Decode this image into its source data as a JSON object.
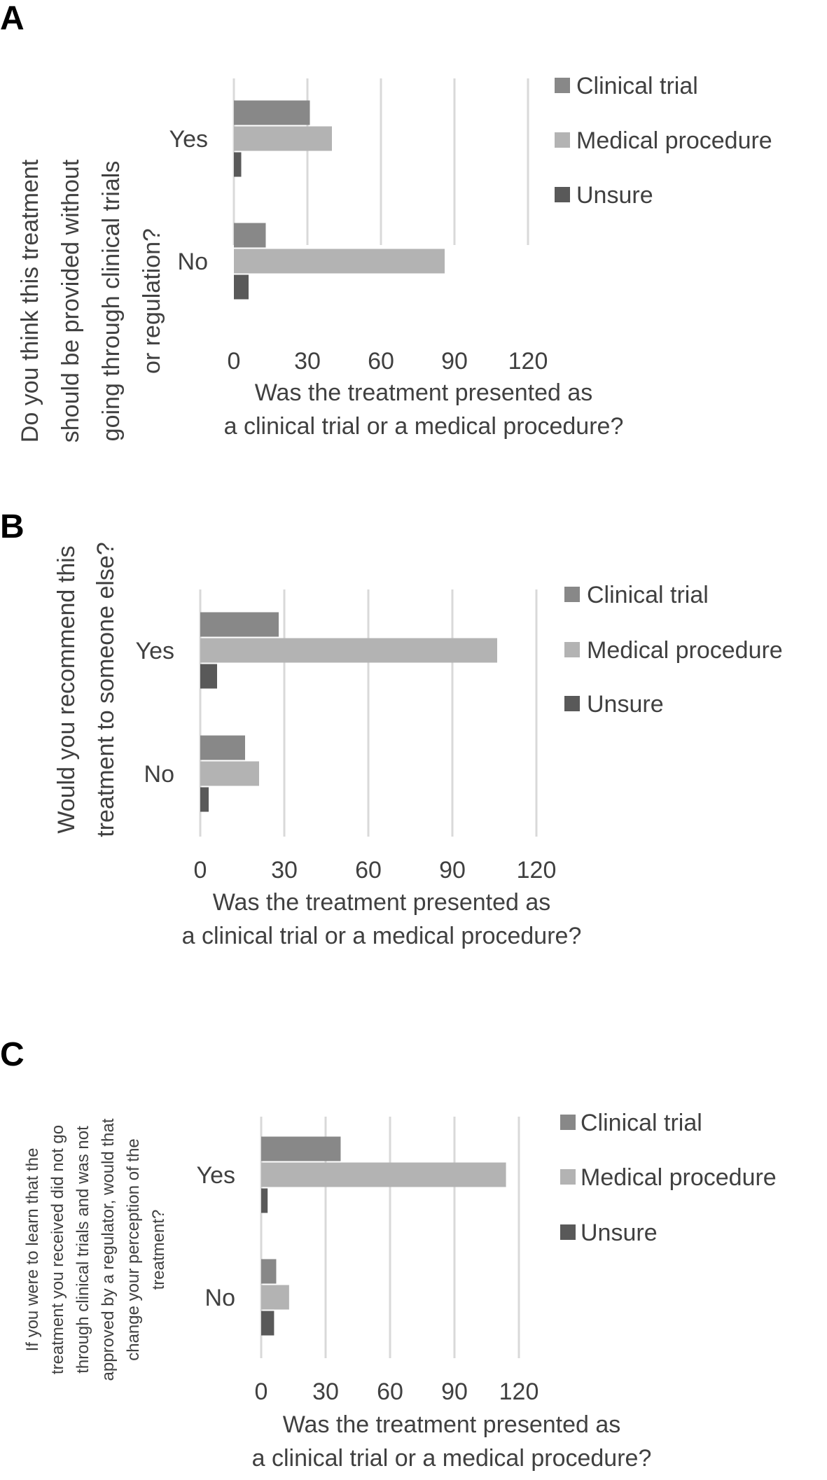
{
  "colors": {
    "Clinical trial": "#888888",
    "Medical procedure": "#b3b3b3",
    "Unsure": "#595959",
    "grid": "#d9d9d9",
    "text": "#404040"
  },
  "chart_data": [
    {
      "type": "bar",
      "orientation": "horizontal",
      "panel": "A",
      "categories": [
        "Yes",
        "No"
      ],
      "series": [
        {
          "name": "Clinical trial",
          "values": [
            31,
            13
          ]
        },
        {
          "name": "Medical procedure",
          "values": [
            40,
            86
          ]
        },
        {
          "name": "Unsure",
          "values": [
            3,
            6
          ]
        }
      ],
      "xticks": [
        "0",
        "30",
        "60",
        "90",
        "120"
      ],
      "xlim": [
        0,
        120
      ],
      "xlabel": [
        "Was the treatment presented as",
        "a clinical trial or a medical procedure?"
      ],
      "ylabel": [
        "Do you think this treatment",
        "should be provided without",
        "going through clinical trials",
        "or regulation?"
      ],
      "legend": [
        "Clinical trial",
        "Medical procedure",
        "Unsure"
      ],
      "legend_position": "right",
      "grid": true
    },
    {
      "type": "bar",
      "orientation": "horizontal",
      "panel": "B",
      "categories": [
        "Yes",
        "No"
      ],
      "series": [
        {
          "name": "Clinical trial",
          "values": [
            28,
            16
          ]
        },
        {
          "name": "Medical procedure",
          "values": [
            106,
            21
          ]
        },
        {
          "name": "Unsure",
          "values": [
            6,
            3
          ]
        }
      ],
      "xticks": [
        "0",
        "30",
        "60",
        "90",
        "120"
      ],
      "xlim": [
        0,
        120
      ],
      "xlabel": [
        "Was the treatment presented as",
        "a clinical trial or a medical procedure?"
      ],
      "ylabel": [
        "Would you recommend this",
        "treatment to someone else?"
      ],
      "legend": [
        "Clinical trial",
        "Medical procedure",
        "Unsure"
      ],
      "legend_position": "right",
      "grid": true
    },
    {
      "type": "bar",
      "orientation": "horizontal",
      "panel": "C",
      "categories": [
        "Yes",
        "No"
      ],
      "series": [
        {
          "name": "Clinical trial",
          "values": [
            37,
            7
          ]
        },
        {
          "name": "Medical procedure",
          "values": [
            114,
            13
          ]
        },
        {
          "name": "Unsure",
          "values": [
            3,
            6
          ]
        }
      ],
      "xticks": [
        "0",
        "30",
        "60",
        "90",
        "120"
      ],
      "xlim": [
        0,
        120
      ],
      "xlabel": [
        "Was the treatment presented as",
        "a clinical trial or a medical procedure?"
      ],
      "ylabel": [
        "If you were to learn that the",
        "treatment you received did not go",
        "through clinical trials and was not",
        "approved by a regulator, would that",
        "change your perception of the",
        "treatment?"
      ],
      "legend": [
        "Clinical trial",
        "Medical procedure",
        "Unsure"
      ],
      "legend_position": "right",
      "grid": true
    }
  ]
}
